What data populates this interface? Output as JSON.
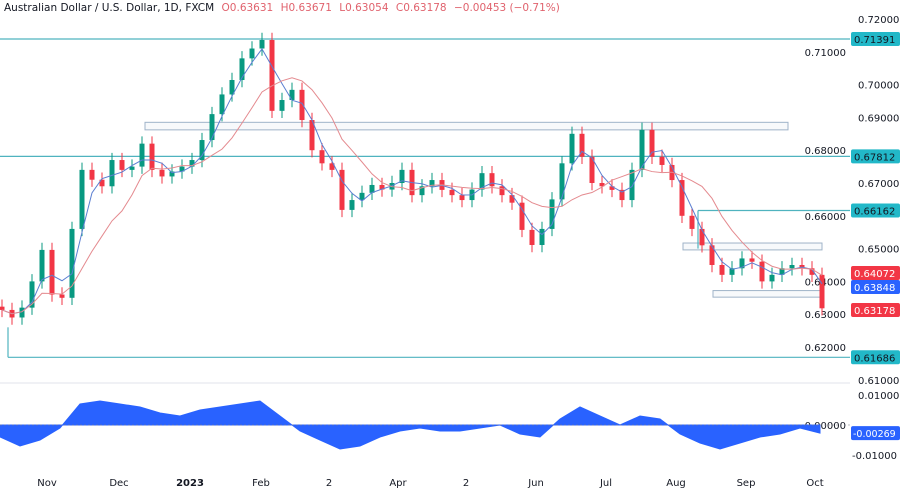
{
  "header": {
    "symbol": "Australian Dollar / U.S. Dollar, 1D, FXCM",
    "open": "O0.63631",
    "high": "H0.63671",
    "low": "L0.63054",
    "close": "C0.63178",
    "change": "−0.00453 (−0.71%)"
  },
  "colors": {
    "up": "#089981",
    "down": "#f23645",
    "ma_fast": "#5b7fd1",
    "ma_slow": "#e48a8f",
    "level": "#4fb3bf",
    "box": "#9fb3c8",
    "osc": "#2962ff"
  },
  "chart_data": {
    "type": "candlestick",
    "price_axis": {
      "ylim": [
        0.605,
        0.722
      ],
      "ticks": [
        "0.72000",
        "0.71000",
        "0.70000",
        "0.69000",
        "0.68000",
        "0.67000",
        "0.66000",
        "0.65000",
        "0.64000",
        "0.63000",
        "0.62000",
        "0.61000"
      ]
    },
    "x_labels": [
      "Nov",
      "Dec",
      "2023",
      "Feb",
      "2",
      "Apr",
      "2",
      "Jun",
      "Jul",
      "Aug",
      "Sep",
      "Oct"
    ],
    "closes": [
      0.6313,
      0.629,
      0.632,
      0.64,
      0.6496,
      0.636,
      0.635,
      0.656,
      0.674,
      0.671,
      0.669,
      0.677,
      0.674,
      0.675,
      0.682,
      0.674,
      0.672,
      0.6735,
      0.675,
      0.677,
      0.6831,
      0.691,
      0.697,
      0.7014,
      0.708,
      0.711,
      0.7136,
      0.692,
      0.6953,
      0.6984,
      0.6892,
      0.68,
      0.676,
      0.674,
      0.6618,
      0.6648,
      0.667,
      0.6694,
      0.668,
      0.67,
      0.674,
      0.6663,
      0.669,
      0.6709,
      0.6679,
      0.6663,
      0.6648,
      0.668,
      0.673,
      0.669,
      0.6663,
      0.664,
      0.6557,
      0.6511,
      0.656,
      0.665,
      0.676,
      0.685,
      0.678,
      0.67,
      0.669,
      0.6679,
      0.6648,
      0.674,
      0.6862,
      0.678,
      0.6755,
      0.6709,
      0.66,
      0.656,
      0.651,
      0.645,
      0.642,
      0.644,
      0.647,
      0.646,
      0.64,
      0.642,
      0.644,
      0.645,
      0.644,
      0.642,
      0.6318
    ],
    "levels": [
      {
        "value": 0.71391,
        "label": "0.71391"
      },
      {
        "value": 0.67812,
        "label": "0.67812"
      },
      {
        "value": 0.66162,
        "label": "0.66162"
      },
      {
        "value": 0.61686,
        "label": "0.61686"
      }
    ],
    "zones": [
      {
        "top": 0.6885,
        "bottom": 0.6862
      },
      {
        "top": 0.6517,
        "bottom": 0.6496
      },
      {
        "top": 0.6372,
        "bottom": 0.6352
      }
    ],
    "price_tags": [
      {
        "label": "0.64072",
        "color": "#f23645",
        "value": 0.64072
      },
      {
        "label": "0.63848",
        "color": "#2962ff",
        "value": 0.63848
      },
      {
        "label": "0.63178",
        "color": "#f23645",
        "value": 0.63178
      }
    ],
    "oscillator": {
      "ticks": [
        "0.01000",
        "0.00000",
        "-0.01000"
      ],
      "last_label": "-0.00269",
      "ylim": [
        -0.0105,
        0.0105
      ],
      "values": [
        -0.004,
        -0.007,
        -0.005,
        -0.001,
        0.007,
        0.008,
        0.007,
        0.006,
        0.004,
        0.003,
        0.005,
        0.006,
        0.007,
        0.008,
        0.003,
        -0.002,
        -0.005,
        -0.008,
        -0.007,
        -0.004,
        -0.002,
        -0.001,
        -0.002,
        -0.002,
        -0.001,
        0.0,
        -0.003,
        -0.004,
        0.002,
        0.006,
        0.003,
        0.0,
        0.003,
        0.002,
        -0.003,
        -0.006,
        -0.008,
        -0.006,
        -0.004,
        -0.003,
        -0.001,
        -0.00269
      ]
    }
  }
}
